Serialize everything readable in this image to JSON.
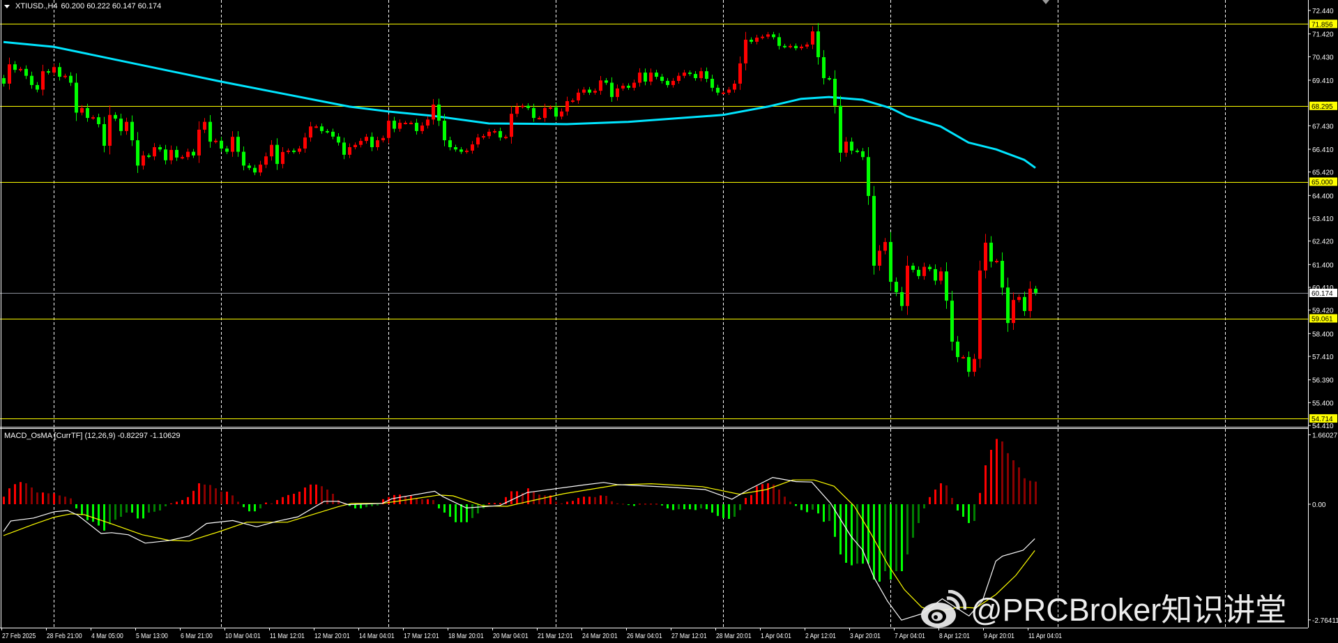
{
  "header": {
    "symbol": "XTIUSD.,H4",
    "ohlc_readout": "60.200 60.222 60.147 60.174"
  },
  "indicator": {
    "label": "MACD_OsMA [CurrTF] (12,26,9) -0.82297 -1.10629"
  },
  "watermark": {
    "text": "@PRCBroker知识讲堂",
    "logo": "weibo-logo-icon"
  },
  "colors": {
    "background": "#000000",
    "bull_candle": "#ff0000",
    "bear_candle": "#00ff00",
    "ma": "#00e5ff",
    "level_line": "#ffff00",
    "macd_line": "#ffffff",
    "signal_line": "#ffff00",
    "hist_up_strong": "#ff0000",
    "hist_up_weak": "#8b0000",
    "hist_down_strong": "#00ff00",
    "hist_down_weak": "#008000",
    "grid": "#ffffff"
  },
  "chart_data": [
    {
      "type": "candlestick",
      "symbol": "XTIUSD.",
      "timeframe": "H4",
      "ylim": [
        54.41,
        72.44
      ],
      "price_ticks": [
        "72.440",
        "71.420",
        "70.430",
        "69.410",
        "67.430",
        "66.410",
        "65.420",
        "64.400",
        "63.410",
        "62.420",
        "61.400",
        "60.410",
        "59.420",
        "58.400",
        "57.410",
        "56.390",
        "55.400",
        "54.410"
      ],
      "levels": [
        "71.856",
        "68.295",
        "65.000",
        "59.061",
        "54.714"
      ],
      "current_price": "60.174",
      "time_labels": [
        "27 Feb 2025",
        "28 Feb 21:00",
        "4 Mar 05:00",
        "5 Mar 13:00",
        "6 Mar 21:00",
        "10 Mar 04:01",
        "11 Mar 12:01",
        "12 Mar 20:01",
        "14 Mar 04:01",
        "17 Mar 12:01",
        "18 Mar 20:01",
        "20 Mar 04:01",
        "21 Mar 12:01",
        "24 Mar 20:01",
        "26 Mar 04:01",
        "27 Mar 12:01",
        "28 Mar 20:01",
        "1 Apr 04:01",
        "2 Apr 12:01",
        "3 Apr 20:01",
        "7 Apr 04:01",
        "8 Apr 12:01",
        "9 Apr 20:01",
        "11 Apr 04:01"
      ],
      "grid": true,
      "close": [
        69.26,
        70.1,
        69.86,
        69.9,
        69.6,
        69.2,
        69.0,
        69.8,
        69.74,
        69.98,
        69.56,
        69.6,
        69.3,
        68.0,
        68.2,
        67.77,
        67.8,
        67.5,
        66.56,
        67.9,
        67.74,
        67.2,
        67.6,
        66.8,
        65.7,
        66.14,
        66.1,
        66.5,
        66.4,
        65.93,
        66.38,
        66.05,
        66.07,
        66.3,
        66.14,
        67.26,
        67.6,
        66.74,
        66.78,
        66.44,
        66.3,
        66.95,
        66.3,
        65.7,
        65.6,
        65.4,
        65.74,
        66.1,
        66.6,
        65.77,
        66.29,
        66.35,
        66.3,
        66.44,
        66.92,
        67.4,
        67.4,
        67.2,
        67.17,
        66.96,
        66.7,
        66.17,
        66.5,
        66.6,
        66.77,
        66.95,
        66.5,
        66.8,
        66.9,
        67.65,
        67.3,
        67.56,
        67.56,
        67.56,
        67.2,
        67.44,
        67.7,
        68.35,
        67.65,
        66.8,
        66.5,
        66.4,
        66.3,
        66.35,
        66.62,
        66.92,
        66.98,
        67.17,
        67.2,
        66.92,
        66.95,
        67.95,
        68.26,
        68.3,
        68.2,
        67.77,
        67.77,
        68.2,
        68.23,
        67.83,
        68.05,
        68.5,
        68.53,
        68.87,
        69.0,
        68.87,
        68.95,
        69.4,
        69.3,
        68.68,
        69.05,
        69.17,
        69.08,
        69.3,
        69.74,
        69.35,
        69.74,
        69.56,
        69.38,
        69.2,
        69.38,
        69.6,
        69.74,
        69.68,
        69.5,
        69.8,
        69.47,
        69.08,
        68.87,
        68.87,
        69.0,
        69.26,
        70.14,
        71.17,
        71.08,
        71.26,
        71.3,
        71.4,
        71.28,
        70.9,
        70.87,
        70.9,
        70.8,
        70.87,
        70.96,
        71.53,
        70.41,
        69.5,
        69.47,
        68.3,
        66.26,
        66.74,
        66.35,
        66.32,
        66.07,
        64.38,
        61.35,
        62.0,
        62.38,
        60.65,
        60.2,
        59.6,
        61.35,
        61.17,
        60.9,
        61.3,
        61.2,
        60.7,
        61.1,
        59.83,
        58.05,
        57.38,
        57.38,
        56.74,
        57.3,
        61.14,
        62.35,
        61.53,
        61.56,
        60.4,
        58.86,
        59.86,
        59.99,
        59.38,
        60.35,
        60.17
      ],
      "moving_average": [
        [
          0,
          71.07
        ],
        [
          9,
          70.86
        ],
        [
          39,
          69.35
        ],
        [
          62,
          68.26
        ],
        [
          69,
          68.05
        ],
        [
          77,
          67.86
        ],
        [
          87,
          67.53
        ],
        [
          101,
          67.5
        ],
        [
          112,
          67.6
        ],
        [
          129,
          67.9
        ],
        [
          137,
          68.26
        ],
        [
          143,
          68.6
        ],
        [
          148,
          68.68
        ],
        [
          154,
          68.56
        ],
        [
          159,
          68.2
        ],
        [
          162,
          67.84
        ],
        [
          168,
          67.4
        ],
        [
          173,
          66.7
        ],
        [
          178,
          66.4
        ],
        [
          183,
          65.95
        ],
        [
          185,
          65.6
        ]
      ]
    },
    {
      "type": "bar",
      "name": "MACD_OsMA [CurrTF] (12,26,9)",
      "ylim": [
        -2.76411,
        1.66027
      ],
      "y_ticks": [
        "1.66027",
        "0.00",
        "-2.76411"
      ],
      "histogram": [
        0.18,
        0.38,
        0.48,
        0.53,
        0.5,
        0.4,
        0.28,
        0.28,
        0.26,
        0.26,
        0.21,
        0.18,
        0.14,
        -0.1,
        -0.26,
        -0.38,
        -0.42,
        -0.51,
        -0.63,
        -0.48,
        -0.37,
        -0.3,
        -0.2,
        -0.2,
        -0.34,
        -0.34,
        -0.2,
        -0.18,
        -0.15,
        -0.05,
        0.02,
        0.06,
        0.1,
        0.17,
        0.32,
        0.5,
        0.47,
        0.46,
        0.38,
        0.3,
        0.3,
        0.21,
        0.06,
        -0.07,
        -0.17,
        -0.17,
        -0.1,
        0.04,
        0.02,
        0.1,
        0.17,
        0.22,
        0.25,
        0.3,
        0.4,
        0.47,
        0.47,
        0.43,
        0.35,
        0.25,
        0.1,
        0.02,
        -0.04,
        -0.1,
        -0.1,
        -0.07,
        -0.05,
        -0.03,
        0.12,
        0.17,
        0.22,
        0.23,
        0.2,
        0.2,
        0.15,
        0.12,
        0.12,
        0.1,
        -0.1,
        -0.2,
        -0.3,
        -0.43,
        -0.43,
        -0.43,
        -0.33,
        -0.22,
        -0.1,
        0.03,
        0.03,
        0.03,
        0.17,
        0.31,
        0.31,
        0.27,
        0.38,
        0.3,
        0.23,
        0.21,
        0.21,
        0.06,
        0.02,
        0.06,
        0.08,
        0.15,
        0.18,
        0.18,
        0.17,
        0.21,
        0.2,
        0.07,
        0.02,
        0.01,
        -0.02,
        -0.04,
        0.01,
        0.01,
        0.01,
        0.01,
        -0.03,
        -0.1,
        -0.14,
        -0.12,
        -0.12,
        -0.12,
        -0.14,
        -0.1,
        -0.12,
        -0.2,
        -0.28,
        -0.33,
        -0.35,
        -0.3,
        -0.14,
        0.15,
        0.22,
        0.43,
        0.48,
        0.5,
        0.47,
        0.35,
        0.18,
        0.06,
        -0.04,
        -0.14,
        -0.19,
        -0.13,
        -0.22,
        -0.42,
        -0.4,
        -0.78,
        -1.2,
        -1.4,
        -1.46,
        -1.42,
        -1.42,
        -1.42,
        -1.8,
        -1.85,
        -1.6,
        -1.8,
        -1.6,
        -1.6,
        -1.2,
        -0.8,
        -0.45,
        -0.1,
        0.17,
        0.35,
        0.5,
        0.45,
        0.15,
        -0.15,
        -0.3,
        -0.45,
        -0.4,
        0.27,
        0.93,
        1.3,
        1.56,
        1.5,
        1.22,
        1.05,
        0.88,
        0.62,
        0.56,
        0.54
      ],
      "macd_line": [
        [
          0,
          -0.65
        ],
        [
          1.3,
          -0.4
        ],
        [
          5.4,
          -0.33
        ],
        [
          9.1,
          -0.18
        ],
        [
          11.5,
          -0.15
        ],
        [
          13.3,
          -0.26
        ],
        [
          17.5,
          -0.7
        ],
        [
          19.4,
          -0.68
        ],
        [
          22.4,
          -0.73
        ],
        [
          25.4,
          -0.93
        ],
        [
          29.6,
          -0.87
        ],
        [
          33.3,
          -0.76
        ],
        [
          36.4,
          -0.46
        ],
        [
          41.1,
          -0.39
        ],
        [
          45.4,
          -0.54
        ],
        [
          49,
          -0.41
        ],
        [
          52.8,
          -0.3
        ],
        [
          57.5,
          0.07
        ],
        [
          60,
          0.07
        ],
        [
          61.8,
          -0.01
        ],
        [
          67.9,
          0.02
        ],
        [
          69.6,
          0.13
        ],
        [
          73.9,
          0.23
        ],
        [
          77.3,
          0.31
        ],
        [
          78.8,
          0.18
        ],
        [
          83,
          -0.09
        ],
        [
          89,
          -0.03
        ],
        [
          93.9,
          0.28
        ],
        [
          104,
          0.46
        ],
        [
          107.6,
          0.52
        ],
        [
          110,
          0.47
        ],
        [
          119,
          0.41
        ],
        [
          125.8,
          0.35
        ],
        [
          130.6,
          0.12
        ],
        [
          133.6,
          0.35
        ],
        [
          137.9,
          0.64
        ],
        [
          142.1,
          0.54
        ],
        [
          144.9,
          0.53
        ],
        [
          148.3,
          0.02
        ],
        [
          151.9,
          -0.76
        ],
        [
          154,
          -1.09
        ],
        [
          156.1,
          -1.76
        ],
        [
          158.5,
          -2.32
        ],
        [
          161,
          -2.77
        ],
        [
          164.6,
          -2.62
        ],
        [
          168.3,
          -2.26
        ],
        [
          173.1,
          -2.67
        ],
        [
          175.5,
          -2.31
        ],
        [
          177.9,
          -1.36
        ],
        [
          179.1,
          -1.24
        ],
        [
          182.8,
          -1.1
        ],
        [
          184.9,
          -0.82297
        ]
      ],
      "signal_line": [
        [
          0,
          -0.75
        ],
        [
          5.4,
          -0.48
        ],
        [
          9.1,
          -0.31
        ],
        [
          12.1,
          -0.23
        ],
        [
          14.5,
          -0.25
        ],
        [
          19.4,
          -0.47
        ],
        [
          24.9,
          -0.73
        ],
        [
          29.6,
          -0.86
        ],
        [
          33.3,
          -0.88
        ],
        [
          38.8,
          -0.65
        ],
        [
          43.6,
          -0.43
        ],
        [
          50.9,
          -0.43
        ],
        [
          53.9,
          -0.31
        ],
        [
          60,
          -0.06
        ],
        [
          62.4,
          0.02
        ],
        [
          67.9,
          0.02
        ],
        [
          72.1,
          0.1
        ],
        [
          78.1,
          0.22
        ],
        [
          80.6,
          0.2
        ],
        [
          86,
          -0.04
        ],
        [
          90.3,
          -0.05
        ],
        [
          93.9,
          0.06
        ],
        [
          100.4,
          0.25
        ],
        [
          110,
          0.46
        ],
        [
          116.1,
          0.49
        ],
        [
          125.3,
          0.42
        ],
        [
          131.9,
          0.24
        ],
        [
          136.8,
          0.35
        ],
        [
          141.5,
          0.58
        ],
        [
          145.3,
          0.58
        ],
        [
          148.9,
          0.43
        ],
        [
          152.5,
          -0.04
        ],
        [
          155.5,
          -0.7
        ],
        [
          158.5,
          -1.43
        ],
        [
          161.5,
          -2.04
        ],
        [
          164.6,
          -2.46
        ],
        [
          167,
          -2.57
        ],
        [
          171.3,
          -2.46
        ],
        [
          174.3,
          -2.48
        ],
        [
          177.9,
          -2.16
        ],
        [
          181.5,
          -1.7
        ],
        [
          184.9,
          -1.10629
        ]
      ]
    }
  ]
}
